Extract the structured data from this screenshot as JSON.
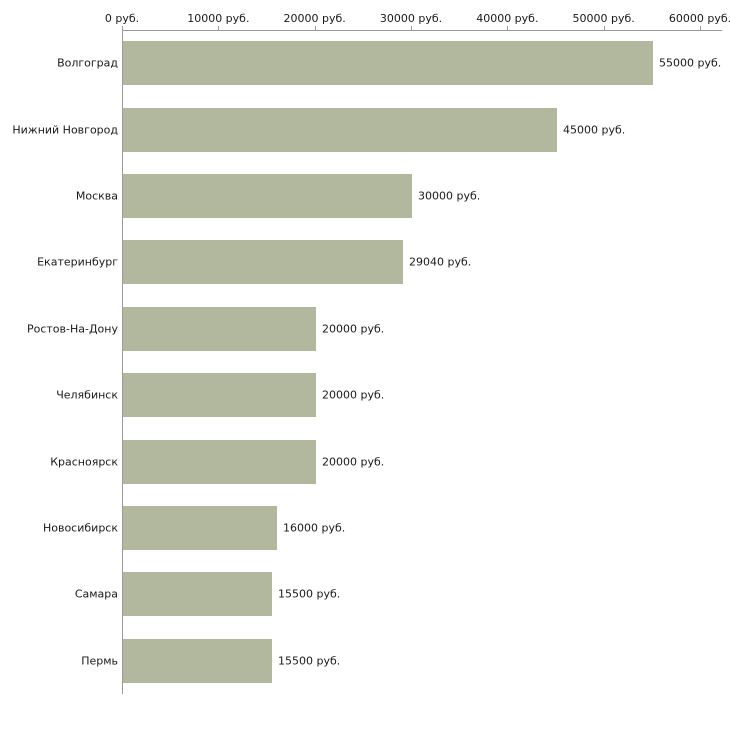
{
  "chart_data": {
    "type": "bar",
    "orientation": "horizontal",
    "title": "",
    "xlabel": "",
    "ylabel": "",
    "xlim": [
      0,
      60000
    ],
    "grid": false,
    "legend": false,
    "bar_color": "#b2b89e",
    "axis_color": "#9a9a9a",
    "x_ticks": [
      {
        "value": 0,
        "label": "0 руб."
      },
      {
        "value": 10000,
        "label": "10000 руб."
      },
      {
        "value": 20000,
        "label": "20000 руб."
      },
      {
        "value": 30000,
        "label": "30000 руб."
      },
      {
        "value": 40000,
        "label": "40000 руб."
      },
      {
        "value": 50000,
        "label": "50000 руб."
      },
      {
        "value": 60000,
        "label": "60000 руб."
      }
    ],
    "categories": [
      "Волгоград",
      "Нижний Новгород",
      "Москва",
      "Екатеринбург",
      "Ростов-На-Дону",
      "Челябинск",
      "Красноярск",
      "Новосибирск",
      "Самара",
      "Пермь"
    ],
    "values": [
      55000,
      45000,
      30000,
      29040,
      20000,
      20000,
      20000,
      16000,
      15500,
      15500
    ],
    "value_labels": [
      "55000 руб.",
      "45000 руб.",
      "30000 руб.",
      "29040 руб.",
      "20000 руб.",
      "20000 руб.",
      "20000 руб.",
      "16000 руб.",
      "15500 руб.",
      "15500 руб."
    ]
  }
}
